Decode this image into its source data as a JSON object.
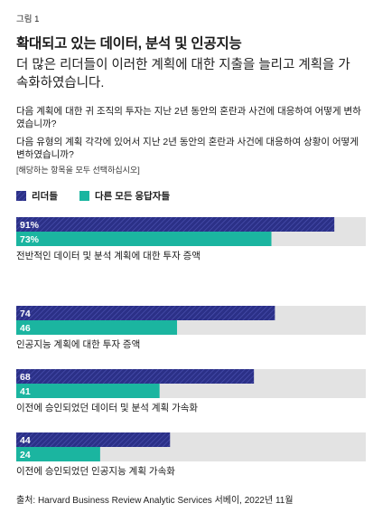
{
  "figure_label": "그림 1",
  "title": "확대되고 있는 데이터, 분석 및 인공지능",
  "subtitle": "더 많은 리더들이 이러한 계획에 대한 지출을 늘리고 계획을 가속화하였습니다.",
  "question1": "다음 계획에 대한 귀 조직의 투자는 지난 2년 동안의 혼란과 사건에 대응하여 어떻게 변하였습니까?",
  "question2": "다음 유형의 계획 각각에 있어서 지난 2년 동안의 혼란과 사건에 대응하여 상황이 어떻게 변하였습니까?",
  "note": "[해당하는 항목을 모두 선택하십시오]",
  "source": "출처: Harvard Business Review Analytic Services 서베이, 2022년 11월",
  "colors": {
    "leaders": "#2b3087",
    "others": "#1bb5a0",
    "track": "#e3e3e3"
  },
  "chart_data": {
    "type": "bar",
    "orientation": "horizontal",
    "xlim": [
      0,
      100
    ],
    "grid": false,
    "legend_position": "top-left",
    "categories": [
      "전반적인 데이터 및 분석 계획에 대한 투자 증액",
      "인공지능 계획에 대한 투자 증액",
      "이전에 승인되었던 데이터 및 분석 계획 가속화",
      "이전에 승인되었던 인공지능 계획 가속화"
    ],
    "series": [
      {
        "name": "리더들",
        "values": [
          91,
          74,
          68,
          44
        ],
        "labels": [
          "91%",
          "74",
          "68",
          "44"
        ]
      },
      {
        "name": "다른 모든 응답자들",
        "values": [
          73,
          46,
          41,
          24
        ],
        "labels": [
          "73%",
          "46",
          "41",
          "24"
        ]
      }
    ]
  }
}
